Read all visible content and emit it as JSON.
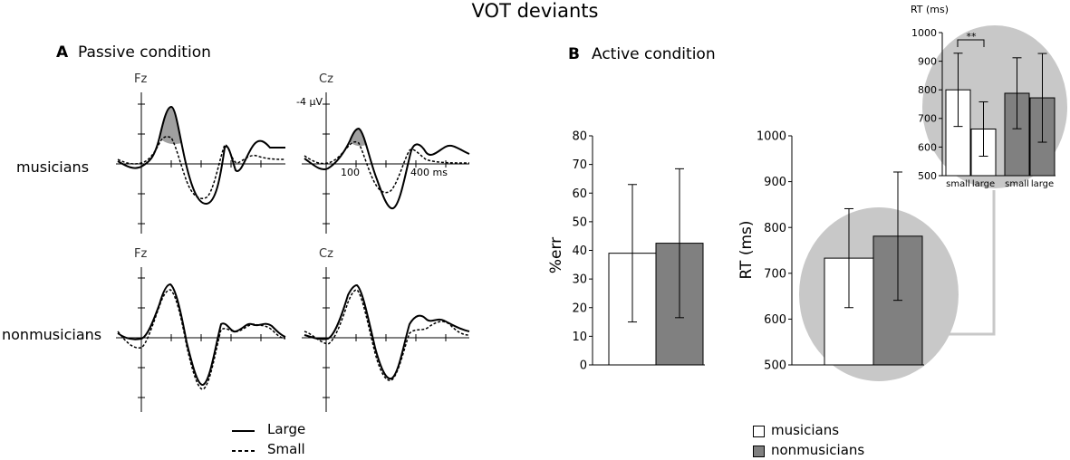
{
  "figure_title": "VOT deviants",
  "panel_a": {
    "letter": "A",
    "title": "Passive condition",
    "electrodes": [
      "Fz",
      "Cz"
    ],
    "rows": [
      "musicians",
      "nonmusicians"
    ],
    "amplitude_label": "-4 µV",
    "time_ticks": [
      "100",
      "400 ms"
    ],
    "legend": {
      "large": "Large",
      "small": "Small"
    }
  },
  "panel_b": {
    "letter": "B",
    "title": "Active condition",
    "legend": {
      "musicians": "musicians",
      "nonmusicians": "nonmusicians"
    }
  },
  "colors": {
    "musicians": "#ffffff",
    "nonmusicians": "#808080",
    "highlight": "#c8c8c8",
    "shade": "#a0a0a0"
  },
  "chart_data": [
    {
      "type": "bar",
      "id": "error-rate",
      "ylabel": "%err",
      "ylim": [
        0,
        80
      ],
      "yticks": [
        0,
        10,
        20,
        30,
        40,
        50,
        60,
        70,
        80
      ],
      "categories": [
        "musicians",
        "nonmusicians"
      ],
      "values": [
        39,
        42.5
      ],
      "errors": [
        24,
        26
      ]
    },
    {
      "type": "bar",
      "id": "rt-main",
      "ylabel": "RT (ms)",
      "ylim": [
        500,
        1000
      ],
      "yticks": [
        500,
        600,
        700,
        800,
        900,
        1000
      ],
      "categories": [
        "musicians",
        "nonmusicians"
      ],
      "values": [
        733,
        781
      ],
      "errors": [
        108,
        140
      ]
    },
    {
      "type": "bar",
      "id": "rt-inset",
      "title": "RT (ms)",
      "ylim": [
        500,
        1000
      ],
      "yticks": [
        500,
        600,
        700,
        800,
        900,
        1000
      ],
      "categories": [
        "small",
        "large",
        "small",
        "large"
      ],
      "groups": [
        "musicians",
        "musicians",
        "nonmusicians",
        "nonmusicians"
      ],
      "values": [
        800,
        663,
        788,
        772
      ],
      "errors": [
        128,
        95,
        124,
        155
      ],
      "significance": "**"
    }
  ]
}
